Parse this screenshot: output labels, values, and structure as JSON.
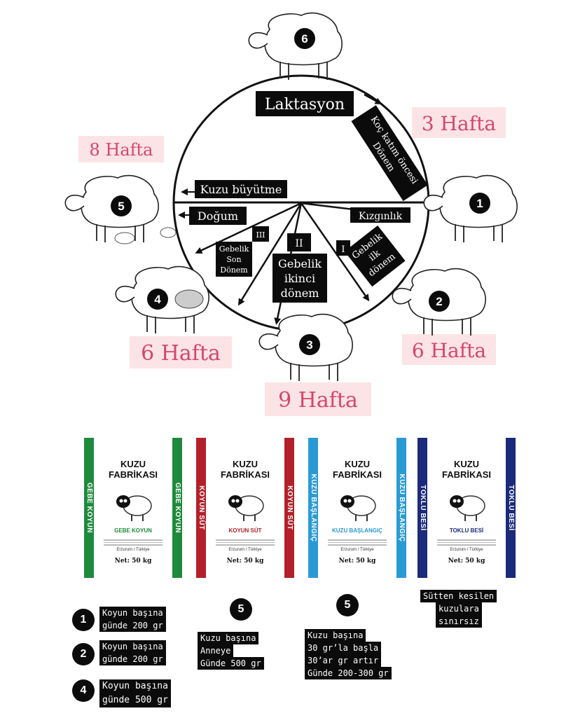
{
  "cycle": {
    "lactation": "Laktasyon",
    "pre_mating_1": "Koç katım öncesi",
    "pre_mating_2": "Dönem",
    "lamb_growth": "Kuzu büyütme",
    "birth": "Doğum",
    "heat": "Kızgınlık",
    "roman_1": "I",
    "roman_2": "II",
    "roman_3": "III",
    "early_1": "Gebelik",
    "early_2": "ilk",
    "early_3": "dönem",
    "mid_1": "Gebelik",
    "mid_2": "ikinci",
    "mid_3": "dönem",
    "late_1": "Gebelik",
    "late_2": "Son",
    "late_3": "Dönem"
  },
  "durations": {
    "d1": "3 Hafta",
    "d2": "8 Hafta",
    "d3": "6 Hafta",
    "d4": "6 Hafta",
    "d5": "9 Hafta"
  },
  "sheep": [
    {
      "num": "6"
    },
    {
      "num": "1"
    },
    {
      "num": "2"
    },
    {
      "num": "3"
    },
    {
      "num": "4"
    },
    {
      "num": "5"
    }
  ],
  "bags": [
    {
      "brand1": "KUZU",
      "brand2": "FABRİKASI",
      "side": "GEBE KOYUN",
      "product": "GEBE KOYUN",
      "city": "Erzurum / Türkiye",
      "net": "Net: 50 kg",
      "color": "#1e8a3c"
    },
    {
      "brand1": "KUZU",
      "brand2": "FABRİKASI",
      "side": "KOYUN SÜT",
      "product": "KOYUN SÜT",
      "city": "Erzurum / Türkiye",
      "net": "Net: 50 kg",
      "color": "#b3202a"
    },
    {
      "brand1": "KUZU",
      "brand2": "FABRİKASI",
      "side": "KUZU BAŞLANGIÇ",
      "product": "KUZU BAŞLANGIÇ",
      "city": "Erzurum / Türkiye",
      "net": "Net: 50 kg",
      "color": "#2a9ad6"
    },
    {
      "brand1": "KUZU",
      "brand2": "FABRİKASI",
      "side": "TOKLU BESİ",
      "product": "TOKLU BESİ",
      "city": "Erzurum / Türkiye",
      "net": "Net: 50 kg",
      "color": "#1b2a7a"
    }
  ],
  "notes": {
    "n1_num": "1",
    "n1_l1": "Koyun başına",
    "n1_l2": "günde 200 gr",
    "n2_num": "2",
    "n2_l1": "Koyun başına",
    "n2_l2": "günde 200 gr",
    "n4_num": "4",
    "n4_l1": "Koyun başına",
    "n4_l2": "günde 500 gr",
    "m_num": "5",
    "m_l1": "Kuzu başına",
    "m_l2": "Anneye",
    "m_l3": "Günde 500 gr",
    "s_num": "5",
    "s_l1": "Kuzu başına",
    "s_l2": "30 gr’la başla",
    "s_l3": "30’ar gr artır",
    "s_l4": "Günde 200-300 gr",
    "t_l1": "Sütten kesilen",
    "t_l2": "kuzulara",
    "t_l3": "sınırsız"
  }
}
